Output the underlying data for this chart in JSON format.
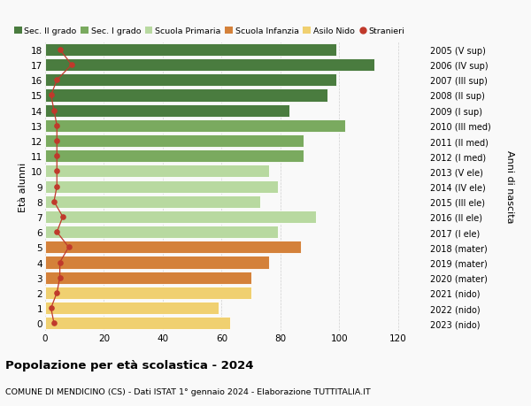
{
  "ages": [
    18,
    17,
    16,
    15,
    14,
    13,
    12,
    11,
    10,
    9,
    8,
    7,
    6,
    5,
    4,
    3,
    2,
    1,
    0
  ],
  "bar_values": [
    99,
    112,
    99,
    96,
    83,
    102,
    88,
    88,
    76,
    79,
    73,
    92,
    79,
    87,
    76,
    70,
    70,
    59,
    63
  ],
  "stranieri": [
    5,
    9,
    4,
    2,
    3,
    4,
    4,
    4,
    4,
    4,
    3,
    6,
    4,
    8,
    5,
    5,
    4,
    2,
    3
  ],
  "bar_colors": [
    "#4a7c3f",
    "#4a7c3f",
    "#4a7c3f",
    "#4a7c3f",
    "#4a7c3f",
    "#7aaa5f",
    "#7aaa5f",
    "#7aaa5f",
    "#b8d9a0",
    "#b8d9a0",
    "#b8d9a0",
    "#b8d9a0",
    "#b8d9a0",
    "#d4813a",
    "#d4813a",
    "#d4813a",
    "#f0d070",
    "#f0d070",
    "#f0d070"
  ],
  "right_labels": [
    "2005 (V sup)",
    "2006 (IV sup)",
    "2007 (III sup)",
    "2008 (II sup)",
    "2009 (I sup)",
    "2010 (III med)",
    "2011 (II med)",
    "2012 (I med)",
    "2013 (V ele)",
    "2014 (IV ele)",
    "2015 (III ele)",
    "2016 (II ele)",
    "2017 (I ele)",
    "2018 (mater)",
    "2019 (mater)",
    "2020 (mater)",
    "2021 (nido)",
    "2022 (nido)",
    "2023 (nido)"
  ],
  "legend_labels": [
    "Sec. II grado",
    "Sec. I grado",
    "Scuola Primaria",
    "Scuola Infanzia",
    "Asilo Nido",
    "Stranieri"
  ],
  "legend_colors": [
    "#4a7c3f",
    "#7aaa5f",
    "#b8d9a0",
    "#d4813a",
    "#f0d070",
    "#c0392b"
  ],
  "stranieri_color": "#c0392b",
  "ylabel": "Età alunni",
  "right_ylabel": "Anni di nascita",
  "title": "Popolazione per età scolastica - 2024",
  "subtitle": "COMUNE DI MENDICINO (CS) - Dati ISTAT 1° gennaio 2024 - Elaborazione TUTTITALIA.IT",
  "xlim": [
    0,
    130
  ],
  "xticks": [
    0,
    20,
    40,
    60,
    80,
    100,
    120
  ],
  "background_color": "#f9f9f9",
  "grid_color": "#d0d0d0"
}
